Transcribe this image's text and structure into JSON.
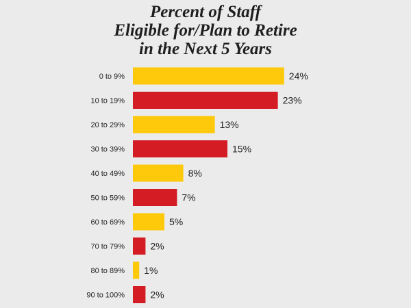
{
  "chart_data": {
    "type": "bar",
    "orientation": "horizontal",
    "title_lines": [
      "Percent of Staff",
      "Eligible for/Plan to Retire",
      "in the Next 5 Years"
    ],
    "categories": [
      "0 to 9%",
      "10 to 19%",
      "20 to 29%",
      "30 to 39%",
      "40 to 49%",
      "50 to 59%",
      "60 to 69%",
      "70 to 79%",
      "80 to 89%",
      "90 to 100%"
    ],
    "values": [
      24,
      23,
      13,
      15,
      8,
      7,
      5,
      2,
      1,
      2
    ],
    "value_labels": [
      "24%",
      "23%",
      "13%",
      "15%",
      "8%",
      "7%",
      "5%",
      "2%",
      "1%",
      "2%"
    ],
    "bar_colors": [
      "#fdc90a",
      "#d31c24",
      "#fdc90a",
      "#d31c24",
      "#fdc90a",
      "#d31c24",
      "#fdc90a",
      "#d31c24",
      "#fdc90a",
      "#d31c24"
    ],
    "xlabel": "",
    "ylabel": "",
    "grid": false,
    "legend": "none"
  }
}
